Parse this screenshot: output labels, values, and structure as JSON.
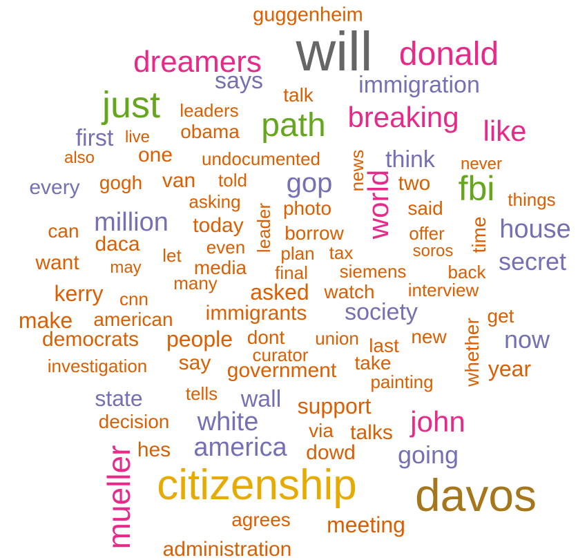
{
  "palette": {
    "gray": "#666666",
    "pink": "#e7298a",
    "purple": "#7570b3",
    "orange": "#d95f02",
    "green": "#66a61e",
    "gold": "#e6ab02",
    "brown": "#a6761d"
  },
  "words": [
    {
      "text": "guggenheim",
      "color": "orange"
    },
    {
      "text": "will",
      "color": "gray"
    },
    {
      "text": "dreamers",
      "color": "pink"
    },
    {
      "text": "donald",
      "color": "pink"
    },
    {
      "text": "says",
      "color": "purple"
    },
    {
      "text": "talk",
      "color": "orange"
    },
    {
      "text": "immigration",
      "color": "purple"
    },
    {
      "text": "just",
      "color": "green"
    },
    {
      "text": "leaders",
      "color": "orange"
    },
    {
      "text": "path",
      "color": "green"
    },
    {
      "text": "breaking",
      "color": "pink"
    },
    {
      "text": "like",
      "color": "pink"
    },
    {
      "text": "first",
      "color": "purple"
    },
    {
      "text": "live",
      "color": "orange"
    },
    {
      "text": "obama",
      "color": "orange"
    },
    {
      "text": "also",
      "color": "orange"
    },
    {
      "text": "one",
      "color": "orange"
    },
    {
      "text": "undocumented",
      "color": "orange"
    },
    {
      "text": "news",
      "color": "orange"
    },
    {
      "text": "think",
      "color": "purple"
    },
    {
      "text": "never",
      "color": "orange"
    },
    {
      "text": "every",
      "color": "purple"
    },
    {
      "text": "gogh",
      "color": "orange"
    },
    {
      "text": "van",
      "color": "orange"
    },
    {
      "text": "told",
      "color": "orange"
    },
    {
      "text": "gop",
      "color": "purple"
    },
    {
      "text": "world",
      "color": "pink"
    },
    {
      "text": "two",
      "color": "orange"
    },
    {
      "text": "fbi",
      "color": "green"
    },
    {
      "text": "things",
      "color": "orange"
    },
    {
      "text": "asking",
      "color": "orange"
    },
    {
      "text": "leader",
      "color": "orange"
    },
    {
      "text": "photo",
      "color": "orange"
    },
    {
      "text": "said",
      "color": "orange"
    },
    {
      "text": "can",
      "color": "orange"
    },
    {
      "text": "million",
      "color": "purple"
    },
    {
      "text": "today",
      "color": "orange"
    },
    {
      "text": "borrow",
      "color": "orange"
    },
    {
      "text": "offer",
      "color": "orange"
    },
    {
      "text": "time",
      "color": "orange"
    },
    {
      "text": "house",
      "color": "purple"
    },
    {
      "text": "daca",
      "color": "orange"
    },
    {
      "text": "even",
      "color": "orange"
    },
    {
      "text": "plan",
      "color": "orange"
    },
    {
      "text": "tax",
      "color": "orange"
    },
    {
      "text": "soros",
      "color": "orange"
    },
    {
      "text": "want",
      "color": "orange"
    },
    {
      "text": "may",
      "color": "orange"
    },
    {
      "text": "let",
      "color": "orange"
    },
    {
      "text": "media",
      "color": "orange"
    },
    {
      "text": "final",
      "color": "orange"
    },
    {
      "text": "siemens",
      "color": "orange"
    },
    {
      "text": "back",
      "color": "orange"
    },
    {
      "text": "secret",
      "color": "purple"
    },
    {
      "text": "many",
      "color": "orange"
    },
    {
      "text": "kerry",
      "color": "orange"
    },
    {
      "text": "asked",
      "color": "orange"
    },
    {
      "text": "watch",
      "color": "orange"
    },
    {
      "text": "interview",
      "color": "orange"
    },
    {
      "text": "cnn",
      "color": "orange"
    },
    {
      "text": "society",
      "color": "purple"
    },
    {
      "text": "make",
      "color": "orange"
    },
    {
      "text": "american",
      "color": "orange"
    },
    {
      "text": "immigrants",
      "color": "orange"
    },
    {
      "text": "whether",
      "color": "orange"
    },
    {
      "text": "get",
      "color": "orange"
    },
    {
      "text": "democrats",
      "color": "orange"
    },
    {
      "text": "people",
      "color": "orange"
    },
    {
      "text": "dont",
      "color": "orange"
    },
    {
      "text": "union",
      "color": "orange"
    },
    {
      "text": "last",
      "color": "orange"
    },
    {
      "text": "new",
      "color": "orange"
    },
    {
      "text": "now",
      "color": "purple"
    },
    {
      "text": "curator",
      "color": "orange"
    },
    {
      "text": "investigation",
      "color": "orange"
    },
    {
      "text": "say",
      "color": "orange"
    },
    {
      "text": "government",
      "color": "orange"
    },
    {
      "text": "take",
      "color": "orange"
    },
    {
      "text": "year",
      "color": "orange"
    },
    {
      "text": "painting",
      "color": "orange"
    },
    {
      "text": "state",
      "color": "purple"
    },
    {
      "text": "tells",
      "color": "orange"
    },
    {
      "text": "wall",
      "color": "purple"
    },
    {
      "text": "support",
      "color": "orange"
    },
    {
      "text": "decision",
      "color": "orange"
    },
    {
      "text": "white",
      "color": "purple"
    },
    {
      "text": "via",
      "color": "orange"
    },
    {
      "text": "talks",
      "color": "orange"
    },
    {
      "text": "john",
      "color": "pink"
    },
    {
      "text": "hes",
      "color": "orange"
    },
    {
      "text": "america",
      "color": "purple"
    },
    {
      "text": "dowd",
      "color": "orange"
    },
    {
      "text": "going",
      "color": "purple"
    },
    {
      "text": "mueller",
      "color": "pink"
    },
    {
      "text": "citizenship",
      "color": "gold"
    },
    {
      "text": "davos",
      "color": "brown"
    },
    {
      "text": "agrees",
      "color": "orange"
    },
    {
      "text": "meeting",
      "color": "orange"
    },
    {
      "text": "administration",
      "color": "orange"
    }
  ]
}
